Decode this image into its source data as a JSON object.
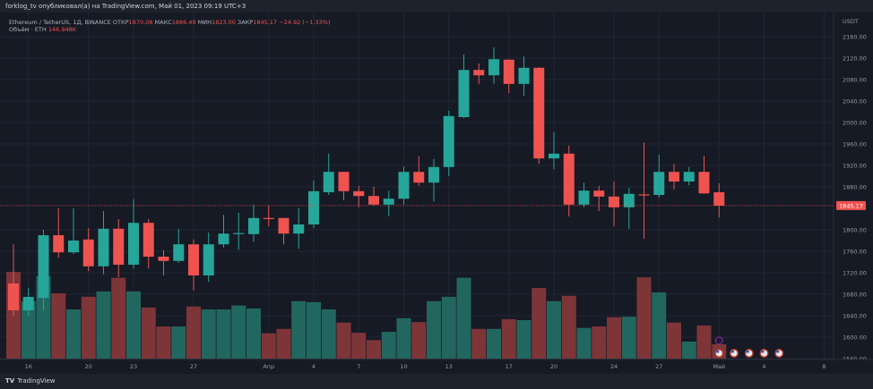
{
  "header": {
    "published": "forklog_tv опубликовал(а) на TradingView.com, Май 01, 2023 09:19 UTC+3"
  },
  "legend": {
    "symbol": "Ethereum / TetherUS, 1Д, BINANCE",
    "open_label": "ОТКР",
    "open": "1870.08",
    "high_label": "МАКС",
    "high": "1886.49",
    "low_label": "МИН",
    "low": "1823.00",
    "close_label": "ЗАКР",
    "close": "1845.17",
    "change": "−24.92 (−1.33%)",
    "volume_label": "Объём · ETH",
    "volume": "146.948K"
  },
  "footer": {
    "brand": "TradingView"
  },
  "colors": {
    "background": "#161a25",
    "up": "#26a69a",
    "down": "#ef5350",
    "volume_up": "#22675f",
    "volume_down": "#7e3538",
    "grid": "#222633"
  },
  "chart_data": {
    "type": "candlestick",
    "currency_label": "USDT",
    "last_price_label": "1845.17",
    "ylim": [
      1560,
      2160
    ],
    "y_ticks": [
      "2160.00",
      "2120.00",
      "2080.00",
      "2040.00",
      "2000.00",
      "1960.00",
      "1920.00",
      "1880.00",
      "1800.00",
      "1760.00",
      "1720.00",
      "1680.00",
      "1640.00",
      "1600.00",
      "1560.00"
    ],
    "x_ticks": [
      {
        "label": "16",
        "date": "2023-03-16"
      },
      {
        "label": "20",
        "date": "2023-03-20"
      },
      {
        "label": "23",
        "date": "2023-03-23"
      },
      {
        "label": "27",
        "date": "2023-03-27"
      },
      {
        "label": "Апр",
        "date": "2023-04-01"
      },
      {
        "label": "4",
        "date": "2023-04-04"
      },
      {
        "label": "7",
        "date": "2023-04-07"
      },
      {
        "label": "10",
        "date": "2023-04-10"
      },
      {
        "label": "13",
        "date": "2023-04-13"
      },
      {
        "label": "17",
        "date": "2023-04-17"
      },
      {
        "label": "20",
        "date": "2023-04-20"
      },
      {
        "label": "24",
        "date": "2023-04-24"
      },
      {
        "label": "27",
        "date": "2023-04-27"
      },
      {
        "label": "Май",
        "date": "2023-05-01"
      },
      {
        "label": "4",
        "date": "2023-05-04"
      },
      {
        "label": "8",
        "date": "2023-05-08"
      }
    ],
    "grid": true,
    "volume_unit": "K ETH",
    "candles": [
      {
        "date": "2023-03-15",
        "o": 1700,
        "h": 1773,
        "l": 1640,
        "c": 1650,
        "v": 890
      },
      {
        "date": "2023-03-16",
        "o": 1650,
        "h": 1692,
        "l": 1640,
        "c": 1675,
        "v": 590
      },
      {
        "date": "2023-03-17",
        "o": 1673,
        "h": 1800,
        "l": 1650,
        "c": 1790,
        "v": 845
      },
      {
        "date": "2023-03-18",
        "o": 1790,
        "h": 1840,
        "l": 1748,
        "c": 1758,
        "v": 670
      },
      {
        "date": "2023-03-19",
        "o": 1758,
        "h": 1840,
        "l": 1755,
        "c": 1780,
        "v": 505
      },
      {
        "date": "2023-03-20",
        "o": 1782,
        "h": 1803,
        "l": 1723,
        "c": 1732,
        "v": 635
      },
      {
        "date": "2023-03-21",
        "o": 1732,
        "h": 1835,
        "l": 1717,
        "c": 1802,
        "v": 690
      },
      {
        "date": "2023-03-22",
        "o": 1802,
        "h": 1820,
        "l": 1712,
        "c": 1735,
        "v": 830
      },
      {
        "date": "2023-03-23",
        "o": 1735,
        "h": 1857,
        "l": 1728,
        "c": 1813,
        "v": 690
      },
      {
        "date": "2023-03-24",
        "o": 1813,
        "h": 1820,
        "l": 1728,
        "c": 1750,
        "v": 525
      },
      {
        "date": "2023-03-25",
        "o": 1750,
        "h": 1762,
        "l": 1715,
        "c": 1742,
        "v": 330
      },
      {
        "date": "2023-03-26",
        "o": 1742,
        "h": 1802,
        "l": 1738,
        "c": 1773,
        "v": 330
      },
      {
        "date": "2023-03-27",
        "o": 1773,
        "h": 1782,
        "l": 1687,
        "c": 1715,
        "v": 535
      },
      {
        "date": "2023-03-28",
        "o": 1715,
        "h": 1795,
        "l": 1703,
        "c": 1773,
        "v": 505
      },
      {
        "date": "2023-03-29",
        "o": 1773,
        "h": 1828,
        "l": 1767,
        "c": 1793,
        "v": 505
      },
      {
        "date": "2023-03-30",
        "o": 1792,
        "h": 1832,
        "l": 1763,
        "c": 1794,
        "v": 545
      },
      {
        "date": "2023-03-31",
        "o": 1792,
        "h": 1847,
        "l": 1778,
        "c": 1822,
        "v": 515
      },
      {
        "date": "2023-04-01",
        "o": 1822,
        "h": 1845,
        "l": 1807,
        "c": 1820,
        "v": 260
      },
      {
        "date": "2023-04-02",
        "o": 1822,
        "h": 1822,
        "l": 1773,
        "c": 1793,
        "v": 305
      },
      {
        "date": "2023-04-03",
        "o": 1793,
        "h": 1840,
        "l": 1765,
        "c": 1810,
        "v": 590
      },
      {
        "date": "2023-04-04",
        "o": 1810,
        "h": 1892,
        "l": 1803,
        "c": 1872,
        "v": 580
      },
      {
        "date": "2023-04-05",
        "o": 1870,
        "h": 1942,
        "l": 1865,
        "c": 1908,
        "v": 505
      },
      {
        "date": "2023-04-06",
        "o": 1908,
        "h": 1908,
        "l": 1855,
        "c": 1872,
        "v": 370
      },
      {
        "date": "2023-04-07",
        "o": 1872,
        "h": 1882,
        "l": 1842,
        "c": 1863,
        "v": 265
      },
      {
        "date": "2023-04-08",
        "o": 1863,
        "h": 1880,
        "l": 1845,
        "c": 1847,
        "v": 190
      },
      {
        "date": "2023-04-09",
        "o": 1847,
        "h": 1873,
        "l": 1825,
        "c": 1858,
        "v": 275
      },
      {
        "date": "2023-04-10",
        "o": 1858,
        "h": 1918,
        "l": 1847,
        "c": 1908,
        "v": 415
      },
      {
        "date": "2023-04-11",
        "o": 1908,
        "h": 1937,
        "l": 1882,
        "c": 1888,
        "v": 375
      },
      {
        "date": "2023-04-12",
        "o": 1888,
        "h": 1932,
        "l": 1853,
        "c": 1917,
        "v": 590
      },
      {
        "date": "2023-04-13",
        "o": 1917,
        "h": 2022,
        "l": 1900,
        "c": 2012,
        "v": 635
      },
      {
        "date": "2023-04-14",
        "o": 2010,
        "h": 2127,
        "l": 2008,
        "c": 2098,
        "v": 830
      },
      {
        "date": "2023-04-15",
        "o": 2098,
        "h": 2110,
        "l": 2072,
        "c": 2088,
        "v": 305
      },
      {
        "date": "2023-04-16",
        "o": 2088,
        "h": 2140,
        "l": 2072,
        "c": 2118,
        "v": 305
      },
      {
        "date": "2023-04-17",
        "o": 2117,
        "h": 2118,
        "l": 2055,
        "c": 2072,
        "v": 405
      },
      {
        "date": "2023-04-18",
        "o": 2072,
        "h": 2123,
        "l": 2050,
        "c": 2102,
        "v": 395
      },
      {
        "date": "2023-04-19",
        "o": 2102,
        "h": 2103,
        "l": 1923,
        "c": 1933,
        "v": 725
      },
      {
        "date": "2023-04-20",
        "o": 1933,
        "h": 1982,
        "l": 1913,
        "c": 1942,
        "v": 590
      },
      {
        "date": "2023-04-21",
        "o": 1942,
        "h": 1957,
        "l": 1825,
        "c": 1847,
        "v": 645
      },
      {
        "date": "2023-04-22",
        "o": 1847,
        "h": 1888,
        "l": 1842,
        "c": 1873,
        "v": 315
      },
      {
        "date": "2023-04-23",
        "o": 1873,
        "h": 1882,
        "l": 1835,
        "c": 1862,
        "v": 330
      },
      {
        "date": "2023-04-24",
        "o": 1862,
        "h": 1890,
        "l": 1807,
        "c": 1842,
        "v": 425
      },
      {
        "date": "2023-04-25",
        "o": 1842,
        "h": 1878,
        "l": 1802,
        "c": 1867,
        "v": 430
      },
      {
        "date": "2023-04-26",
        "o": 1866,
        "h": 1963,
        "l": 1783,
        "c": 1864,
        "v": 835
      },
      {
        "date": "2023-04-27",
        "o": 1865,
        "h": 1940,
        "l": 1860,
        "c": 1908,
        "v": 680
      },
      {
        "date": "2023-04-28",
        "o": 1908,
        "h": 1923,
        "l": 1875,
        "c": 1890,
        "v": 370
      },
      {
        "date": "2023-04-29",
        "o": 1890,
        "h": 1917,
        "l": 1883,
        "c": 1908,
        "v": 175
      },
      {
        "date": "2023-04-30",
        "o": 1908,
        "h": 1938,
        "l": 1867,
        "c": 1868,
        "v": 340
      },
      {
        "date": "2023-05-01",
        "o": 1870.08,
        "h": 1886.49,
        "l": 1823.0,
        "c": 1845.17,
        "v": 146.948
      }
    ],
    "events": {
      "lightning_date": "2023-05-01",
      "us_flag_dates": [
        "2023-05-01",
        "2023-05-02",
        "2023-05-03",
        "2023-05-04",
        "2023-05-05"
      ]
    }
  }
}
